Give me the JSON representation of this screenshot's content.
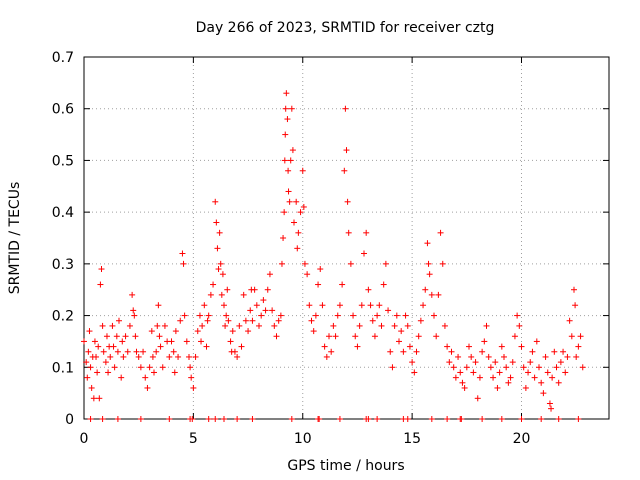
{
  "chart_data": {
    "type": "scatter",
    "title": "Day 266 of 2023, SRMTID for receiver cztg",
    "xlabel": "GPS time / hours",
    "ylabel": "SRMTID / TECUs",
    "xlim": [
      0,
      24
    ],
    "ylim": [
      0,
      0.7
    ],
    "xticks": [
      0,
      5,
      10,
      15,
      20
    ],
    "yticks": [
      0,
      0.1,
      0.2,
      0.3,
      0.4,
      0.5,
      0.6,
      0.7
    ],
    "xtick_labels": [
      "0",
      "5",
      "10",
      "15",
      "20"
    ],
    "ytick_labels": [
      "0",
      "0.1",
      "0.2",
      "0.3",
      "0.4",
      "0.5",
      "0.6",
      "0.7"
    ],
    "grid": true,
    "marker": "plus",
    "color": "#ff0000",
    "series": [
      {
        "name": "SRMTID",
        "points": [
          [
            0.0,
            0.15
          ],
          [
            0.1,
            0.11
          ],
          [
            0.15,
            0.08
          ],
          [
            0.2,
            0.13
          ],
          [
            0.25,
            0.17
          ],
          [
            0.3,
            0.1
          ],
          [
            0.35,
            0.06
          ],
          [
            0.4,
            0.12
          ],
          [
            0.45,
            0.04
          ],
          [
            0.5,
            0.15
          ],
          [
            0.55,
            0.12
          ],
          [
            0.6,
            0.09
          ],
          [
            0.65,
            0.14
          ],
          [
            0.7,
            0.04
          ],
          [
            0.75,
            0.26
          ],
          [
            0.8,
            0.29
          ],
          [
            0.85,
            0.18
          ],
          [
            0.9,
            0.13
          ],
          [
            1.0,
            0.11
          ],
          [
            1.05,
            0.16
          ],
          [
            1.1,
            0.09
          ],
          [
            1.15,
            0.14
          ],
          [
            1.2,
            0.12
          ],
          [
            1.3,
            0.18
          ],
          [
            1.35,
            0.14
          ],
          [
            1.4,
            0.1
          ],
          [
            1.5,
            0.16
          ],
          [
            1.55,
            0.13
          ],
          [
            1.6,
            0.19
          ],
          [
            1.7,
            0.08
          ],
          [
            1.75,
            0.15
          ],
          [
            1.8,
            0.12
          ],
          [
            1.9,
            0.16
          ],
          [
            2.0,
            0.13
          ],
          [
            2.1,
            0.18
          ],
          [
            2.2,
            0.24
          ],
          [
            2.25,
            0.21
          ],
          [
            2.3,
            0.2
          ],
          [
            2.35,
            0.16
          ],
          [
            2.4,
            0.13
          ],
          [
            2.5,
            0.12
          ],
          [
            2.6,
            0.1
          ],
          [
            2.7,
            0.13
          ],
          [
            2.8,
            0.08
          ],
          [
            2.9,
            0.06
          ],
          [
            3.0,
            0.1
          ],
          [
            3.1,
            0.17
          ],
          [
            3.15,
            0.12
          ],
          [
            3.2,
            0.09
          ],
          [
            3.3,
            0.13
          ],
          [
            3.35,
            0.18
          ],
          [
            3.4,
            0.22
          ],
          [
            3.45,
            0.16
          ],
          [
            3.5,
            0.14
          ],
          [
            3.6,
            0.1
          ],
          [
            3.7,
            0.18
          ],
          [
            3.8,
            0.15
          ],
          [
            3.9,
            0.12
          ],
          [
            4.0,
            0.15
          ],
          [
            4.1,
            0.13
          ],
          [
            4.15,
            0.09
          ],
          [
            4.2,
            0.17
          ],
          [
            4.3,
            0.12
          ],
          [
            4.4,
            0.19
          ],
          [
            4.5,
            0.32
          ],
          [
            4.55,
            0.3
          ],
          [
            4.6,
            0.2
          ],
          [
            4.7,
            0.15
          ],
          [
            4.8,
            0.12
          ],
          [
            4.85,
            0.1
          ],
          [
            4.9,
            0.08
          ],
          [
            5.0,
            0.06
          ],
          [
            5.1,
            0.12
          ],
          [
            5.2,
            0.17
          ],
          [
            5.3,
            0.2
          ],
          [
            5.35,
            0.15
          ],
          [
            5.4,
            0.18
          ],
          [
            5.5,
            0.22
          ],
          [
            5.6,
            0.14
          ],
          [
            5.65,
            0.19
          ],
          [
            5.7,
            0.2
          ],
          [
            5.8,
            0.24
          ],
          [
            5.9,
            0.26
          ],
          [
            6.0,
            0.42
          ],
          [
            6.05,
            0.38
          ],
          [
            6.1,
            0.33
          ],
          [
            6.15,
            0.29
          ],
          [
            6.2,
            0.36
          ],
          [
            6.25,
            0.3
          ],
          [
            6.3,
            0.24
          ],
          [
            6.35,
            0.28
          ],
          [
            6.4,
            0.22
          ],
          [
            6.45,
            0.18
          ],
          [
            6.5,
            0.2
          ],
          [
            6.55,
            0.25
          ],
          [
            6.6,
            0.19
          ],
          [
            6.7,
            0.15
          ],
          [
            6.75,
            0.13
          ],
          [
            6.8,
            0.17
          ],
          [
            6.9,
            0.13
          ],
          [
            7.0,
            0.12
          ],
          [
            7.1,
            0.18
          ],
          [
            7.2,
            0.14
          ],
          [
            7.3,
            0.24
          ],
          [
            7.4,
            0.19
          ],
          [
            7.5,
            0.17
          ],
          [
            7.6,
            0.21
          ],
          [
            7.65,
            0.25
          ],
          [
            7.7,
            0.19
          ],
          [
            7.8,
            0.25
          ],
          [
            7.9,
            0.22
          ],
          [
            8.0,
            0.18
          ],
          [
            8.1,
            0.2
          ],
          [
            8.2,
            0.23
          ],
          [
            8.3,
            0.21
          ],
          [
            8.4,
            0.25
          ],
          [
            8.5,
            0.28
          ],
          [
            8.6,
            0.21
          ],
          [
            8.7,
            0.18
          ],
          [
            8.8,
            0.16
          ],
          [
            8.9,
            0.19
          ],
          [
            9.0,
            0.2
          ],
          [
            9.05,
            0.3
          ],
          [
            9.1,
            0.35
          ],
          [
            9.15,
            0.4
          ],
          [
            9.18,
            0.5
          ],
          [
            9.2,
            0.55
          ],
          [
            9.22,
            0.6
          ],
          [
            9.25,
            0.63
          ],
          [
            9.3,
            0.58
          ],
          [
            9.33,
            0.48
          ],
          [
            9.35,
            0.44
          ],
          [
            9.4,
            0.42
          ],
          [
            9.45,
            0.5
          ],
          [
            9.5,
            0.6
          ],
          [
            9.55,
            0.52
          ],
          [
            9.6,
            0.38
          ],
          [
            9.7,
            0.42
          ],
          [
            9.75,
            0.33
          ],
          [
            9.8,
            0.36
          ],
          [
            9.9,
            0.4
          ],
          [
            10.0,
            0.48
          ],
          [
            10.05,
            0.41
          ],
          [
            10.1,
            0.3
          ],
          [
            10.2,
            0.28
          ],
          [
            10.3,
            0.22
          ],
          [
            10.4,
            0.19
          ],
          [
            10.5,
            0.17
          ],
          [
            10.6,
            0.2
          ],
          [
            10.7,
            0.26
          ],
          [
            10.8,
            0.29
          ],
          [
            10.9,
            0.22
          ],
          [
            11.0,
            0.14
          ],
          [
            11.1,
            0.12
          ],
          [
            11.2,
            0.16
          ],
          [
            11.3,
            0.13
          ],
          [
            11.4,
            0.18
          ],
          [
            11.5,
            0.16
          ],
          [
            11.6,
            0.2
          ],
          [
            11.7,
            0.22
          ],
          [
            11.8,
            0.26
          ],
          [
            11.9,
            0.48
          ],
          [
            11.95,
            0.6
          ],
          [
            12.0,
            0.52
          ],
          [
            12.05,
            0.42
          ],
          [
            12.1,
            0.36
          ],
          [
            12.2,
            0.3
          ],
          [
            12.3,
            0.2
          ],
          [
            12.4,
            0.16
          ],
          [
            12.5,
            0.14
          ],
          [
            12.6,
            0.18
          ],
          [
            12.7,
            0.22
          ],
          [
            12.8,
            0.32
          ],
          [
            12.9,
            0.36
          ],
          [
            13.0,
            0.25
          ],
          [
            13.1,
            0.22
          ],
          [
            13.2,
            0.19
          ],
          [
            13.3,
            0.16
          ],
          [
            13.4,
            0.2
          ],
          [
            13.5,
            0.22
          ],
          [
            13.6,
            0.18
          ],
          [
            13.7,
            0.26
          ],
          [
            13.8,
            0.3
          ],
          [
            13.9,
            0.21
          ],
          [
            14.0,
            0.13
          ],
          [
            14.1,
            0.1
          ],
          [
            14.2,
            0.18
          ],
          [
            14.3,
            0.2
          ],
          [
            14.4,
            0.15
          ],
          [
            14.5,
            0.17
          ],
          [
            14.6,
            0.13
          ],
          [
            14.7,
            0.2
          ],
          [
            14.8,
            0.18
          ],
          [
            14.9,
            0.14
          ],
          [
            15.0,
            0.11
          ],
          [
            15.1,
            0.09
          ],
          [
            15.2,
            0.13
          ],
          [
            15.3,
            0.16
          ],
          [
            15.4,
            0.19
          ],
          [
            15.5,
            0.22
          ],
          [
            15.6,
            0.25
          ],
          [
            15.7,
            0.34
          ],
          [
            15.75,
            0.3
          ],
          [
            15.8,
            0.28
          ],
          [
            15.9,
            0.24
          ],
          [
            16.0,
            0.2
          ],
          [
            16.1,
            0.16
          ],
          [
            16.2,
            0.24
          ],
          [
            16.3,
            0.36
          ],
          [
            16.4,
            0.3
          ],
          [
            16.5,
            0.18
          ],
          [
            16.6,
            0.14
          ],
          [
            16.7,
            0.11
          ],
          [
            16.8,
            0.13
          ],
          [
            16.9,
            0.1
          ],
          [
            17.0,
            0.08
          ],
          [
            17.1,
            0.12
          ],
          [
            17.2,
            0.09
          ],
          [
            17.3,
            0.07
          ],
          [
            17.4,
            0.06
          ],
          [
            17.5,
            0.1
          ],
          [
            17.6,
            0.14
          ],
          [
            17.7,
            0.12
          ],
          [
            17.8,
            0.09
          ],
          [
            17.9,
            0.11
          ],
          [
            18.0,
            0.04
          ],
          [
            18.1,
            0.08
          ],
          [
            18.2,
            0.13
          ],
          [
            18.3,
            0.15
          ],
          [
            18.4,
            0.18
          ],
          [
            18.5,
            0.12
          ],
          [
            18.6,
            0.1
          ],
          [
            18.7,
            0.08
          ],
          [
            18.8,
            0.11
          ],
          [
            18.9,
            0.06
          ],
          [
            19.0,
            0.09
          ],
          [
            19.1,
            0.14
          ],
          [
            19.2,
            0.12
          ],
          [
            19.3,
            0.1
          ],
          [
            19.4,
            0.07
          ],
          [
            19.5,
            0.08
          ],
          [
            19.6,
            0.11
          ],
          [
            19.7,
            0.16
          ],
          [
            19.8,
            0.2
          ],
          [
            19.9,
            0.18
          ],
          [
            20.0,
            0.14
          ],
          [
            20.1,
            0.1
          ],
          [
            20.2,
            0.06
          ],
          [
            20.3,
            0.09
          ],
          [
            20.4,
            0.11
          ],
          [
            20.5,
            0.13
          ],
          [
            20.6,
            0.08
          ],
          [
            20.7,
            0.15
          ],
          [
            20.8,
            0.1
          ],
          [
            20.9,
            0.07
          ],
          [
            21.0,
            0.05
          ],
          [
            21.1,
            0.12
          ],
          [
            21.2,
            0.09
          ],
          [
            21.3,
            0.03
          ],
          [
            21.35,
            0.02
          ],
          [
            21.4,
            0.08
          ],
          [
            21.5,
            0.13
          ],
          [
            21.6,
            0.1
          ],
          [
            21.7,
            0.07
          ],
          [
            21.8,
            0.11
          ],
          [
            21.9,
            0.13
          ],
          [
            22.0,
            0.09
          ],
          [
            22.1,
            0.12
          ],
          [
            22.2,
            0.19
          ],
          [
            22.3,
            0.16
          ],
          [
            22.4,
            0.25
          ],
          [
            22.45,
            0.22
          ],
          [
            22.5,
            0.12
          ],
          [
            22.6,
            0.14
          ],
          [
            22.7,
            0.16
          ],
          [
            22.8,
            0.1
          ]
        ],
        "zeros": [
          0.3,
          0.85,
          1.55,
          2.6,
          3.9,
          4.85,
          4.95,
          5.7,
          6.0,
          6.4,
          7.0,
          7.7,
          9.5,
          10.7,
          10.75,
          11.7,
          12.9,
          13.0,
          13.4,
          14.6,
          14.8,
          15.9,
          16.6,
          17.2,
          17.25,
          18.2,
          19.1,
          20.0,
          20.9,
          21.7,
          22.6
        ]
      }
    ]
  }
}
